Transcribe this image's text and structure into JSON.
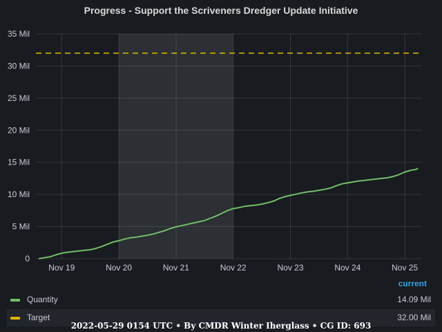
{
  "title": "Progress - Support the Scriveners Dredger Update Initiative",
  "footer": "2022-05-29 0154 UTC • By CMDR Winter Iherglass • CG ID: 693",
  "legend": {
    "header": "current",
    "items": [
      {
        "name": "Quantity",
        "value": "14.09 Mil",
        "color": "#73bf69"
      },
      {
        "name": "Target",
        "value": "32.00 Mil",
        "color": "#e0b400"
      }
    ]
  },
  "chart_data": {
    "type": "line",
    "title": "Progress - Support the Scriveners Dredger Update Initiative",
    "xlabel": "",
    "ylabel": "",
    "x_range": [
      18.55,
      25.3
    ],
    "ylim": [
      0,
      35
    ],
    "y_ticks": [
      {
        "value": 0,
        "label": "0"
      },
      {
        "value": 5,
        "label": "5 Mil"
      },
      {
        "value": 10,
        "label": "10 Mil"
      },
      {
        "value": 15,
        "label": "15 Mil"
      },
      {
        "value": 20,
        "label": "20 Mil"
      },
      {
        "value": 25,
        "label": "25 Mil"
      },
      {
        "value": 30,
        "label": "30 Mil"
      },
      {
        "value": 35,
        "label": "35 Mil"
      }
    ],
    "x_ticks": [
      {
        "value": 19,
        "label": "Nov 19"
      },
      {
        "value": 20,
        "label": "Nov 20"
      },
      {
        "value": 21,
        "label": "Nov 21"
      },
      {
        "value": 22,
        "label": "Nov 22"
      },
      {
        "value": 23,
        "label": "Nov 23"
      },
      {
        "value": 24,
        "label": "Nov 24"
      },
      {
        "value": 25,
        "label": "Nov 25"
      }
    ],
    "grid": true,
    "legend_position": "bottom",
    "highlight_region": [
      20,
      22
    ],
    "series": [
      {
        "name": "Quantity",
        "color": "#73bf69",
        "style": "solid",
        "points": [
          [
            18.6,
            0.0
          ],
          [
            18.8,
            0.3
          ],
          [
            18.9,
            0.6
          ],
          [
            19.0,
            0.85
          ],
          [
            19.1,
            1.0
          ],
          [
            19.2,
            1.1
          ],
          [
            19.3,
            1.2
          ],
          [
            19.4,
            1.3
          ],
          [
            19.5,
            1.4
          ],
          [
            19.6,
            1.6
          ],
          [
            19.7,
            1.9
          ],
          [
            19.8,
            2.25
          ],
          [
            19.9,
            2.6
          ],
          [
            20.0,
            2.8
          ],
          [
            20.1,
            3.05
          ],
          [
            20.2,
            3.25
          ],
          [
            20.3,
            3.35
          ],
          [
            20.4,
            3.5
          ],
          [
            20.5,
            3.65
          ],
          [
            20.6,
            3.85
          ],
          [
            20.7,
            4.1
          ],
          [
            20.8,
            4.35
          ],
          [
            20.9,
            4.7
          ],
          [
            21.0,
            4.95
          ],
          [
            21.1,
            5.15
          ],
          [
            21.2,
            5.35
          ],
          [
            21.3,
            5.55
          ],
          [
            21.4,
            5.75
          ],
          [
            21.5,
            5.95
          ],
          [
            21.6,
            6.3
          ],
          [
            21.7,
            6.65
          ],
          [
            21.8,
            7.05
          ],
          [
            21.9,
            7.5
          ],
          [
            22.0,
            7.8
          ],
          [
            22.1,
            7.95
          ],
          [
            22.2,
            8.15
          ],
          [
            22.3,
            8.25
          ],
          [
            22.4,
            8.35
          ],
          [
            22.5,
            8.5
          ],
          [
            22.6,
            8.7
          ],
          [
            22.7,
            8.95
          ],
          [
            22.8,
            9.35
          ],
          [
            22.9,
            9.65
          ],
          [
            23.0,
            9.85
          ],
          [
            23.1,
            10.05
          ],
          [
            23.2,
            10.25
          ],
          [
            23.3,
            10.4
          ],
          [
            23.4,
            10.5
          ],
          [
            23.5,
            10.65
          ],
          [
            23.6,
            10.8
          ],
          [
            23.7,
            11.0
          ],
          [
            23.8,
            11.35
          ],
          [
            23.9,
            11.65
          ],
          [
            24.0,
            11.8
          ],
          [
            24.1,
            11.95
          ],
          [
            24.2,
            12.1
          ],
          [
            24.3,
            12.2
          ],
          [
            24.4,
            12.3
          ],
          [
            24.5,
            12.4
          ],
          [
            24.6,
            12.5
          ],
          [
            24.7,
            12.6
          ],
          [
            24.8,
            12.8
          ],
          [
            24.9,
            13.1
          ],
          [
            25.0,
            13.5
          ],
          [
            25.1,
            13.75
          ],
          [
            25.2,
            13.9
          ],
          [
            25.23,
            14.09
          ]
        ]
      },
      {
        "name": "Target",
        "color": "#e0b400",
        "style": "dashed",
        "points": [
          [
            18.55,
            32.0
          ],
          [
            25.3,
            32.0
          ]
        ]
      }
    ]
  }
}
